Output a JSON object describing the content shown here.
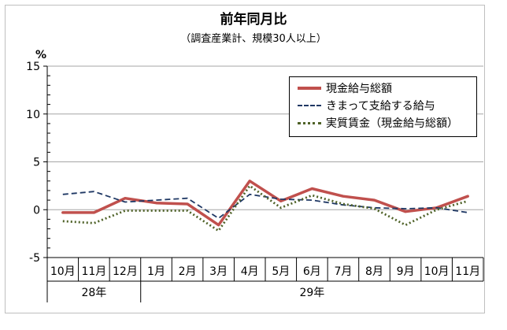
{
  "chart_data": {
    "type": "line",
    "title": "前年同月比",
    "subtitle": "（調査産業計、規模30人以上）",
    "ylabel": "%",
    "ylim": [
      -5,
      15
    ],
    "yticks": [
      "15",
      "10",
      "5",
      "0",
      "-5"
    ],
    "grid": true,
    "legend_position": "top-right",
    "categories": [
      "10月",
      "11月",
      "12月",
      "1月",
      "2月",
      "3月",
      "4月",
      "5月",
      "6月",
      "7月",
      "8月",
      "9月",
      "10月",
      "11月"
    ],
    "year_groups": [
      {
        "label": "28年",
        "start": 0,
        "end": 2
      },
      {
        "label": "29年",
        "start": 3,
        "end": 13
      }
    ],
    "series": [
      {
        "name": "現金給与総額",
        "color": "#c0504d",
        "style": "solid",
        "values": [
          -0.3,
          -0.3,
          1.2,
          0.7,
          0.6,
          -1.6,
          3.0,
          0.9,
          2.2,
          1.4,
          1.0,
          -0.2,
          0.2,
          1.4
        ]
      },
      {
        "name": "きまって支給する給与",
        "color": "#1f3864",
        "style": "dashed",
        "values": [
          1.6,
          1.9,
          0.8,
          1.0,
          1.2,
          -0.9,
          1.6,
          1.1,
          1.0,
          0.5,
          0.2,
          0.1,
          0.2,
          -0.3
        ]
      },
      {
        "name": "実質賃金（現金給与総額）",
        "color": "#4f6228",
        "style": "dotted",
        "values": [
          -1.2,
          -1.4,
          -0.1,
          -0.1,
          -0.1,
          -2.2,
          2.5,
          0.2,
          1.5,
          0.6,
          0.1,
          -1.6,
          0.0,
          0.9
        ]
      }
    ]
  }
}
